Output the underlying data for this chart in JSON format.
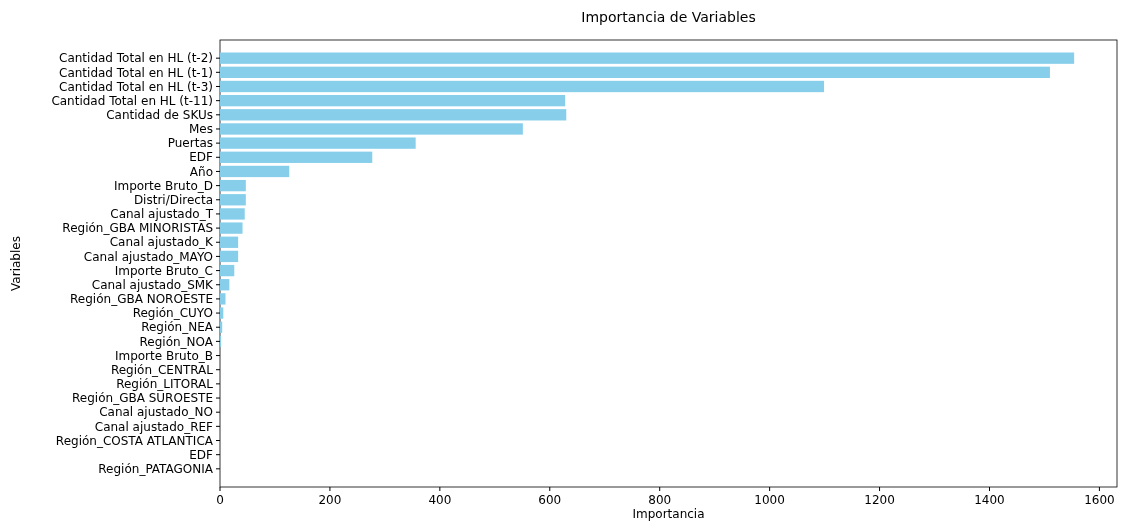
{
  "chart_data": {
    "type": "bar",
    "orientation": "horizontal",
    "title": "Importancia de Variables",
    "xlabel": "Importancia",
    "ylabel": "Variables",
    "categories": [
      "Cantidad Total en HL (t-2)",
      "Cantidad Total en HL (t-1)",
      "Cantidad Total en HL (t-3)",
      "Cantidad Total en HL (t-11)",
      "Cantidad de SKUs",
      "Mes",
      "Puertas",
      "EDF",
      "Año",
      "Importe Bruto_D",
      "Distri/Directa",
      "Canal ajustado_T",
      "Región_GBA MINORISTAS",
      "Canal ajustado_K",
      "Canal ajustado_MAYO",
      "Importe Bruto_C",
      "Canal ajustado_SMK",
      "Región_GBA NOROESTE",
      "Región_CUYO",
      "Región_NEA",
      "Región_NOA",
      "Importe Bruto_B",
      "Región_CENTRAL",
      "Región_LITORAL",
      "Región_GBA SUROESTE",
      "Canal ajustado_NO",
      "Canal ajustado_REF",
      "Región_COSTA ATLANTICA",
      "EDF",
      "Región_PATAGONIA"
    ],
    "values": [
      1554,
      1510,
      1099,
      628,
      630,
      551,
      356,
      277,
      126,
      47,
      47,
      45,
      41,
      33,
      33,
      26,
      17,
      10,
      6,
      4,
      2,
      0,
      0,
      0,
      0,
      0,
      0,
      0,
      0,
      0
    ],
    "color": "#87ceeb",
    "xlim": [
      0,
      1632
    ],
    "xticks": [
      0,
      200,
      400,
      600,
      800,
      1000,
      1200,
      1400,
      1600
    ]
  }
}
